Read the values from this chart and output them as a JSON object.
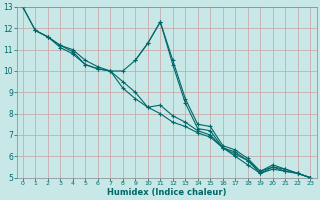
{
  "xlabel": "Humidex (Indice chaleur)",
  "ylabel": "",
  "background_color": "#c8e8e8",
  "grid_color": "#c8a0a0",
  "line_color": "#006868",
  "xlim": [
    -0.5,
    23.5
  ],
  "ylim": [
    5,
    13
  ],
  "xticks": [
    0,
    1,
    2,
    3,
    4,
    5,
    6,
    7,
    8,
    9,
    10,
    11,
    12,
    13,
    14,
    15,
    16,
    17,
    18,
    19,
    20,
    21,
    22,
    23
  ],
  "yticks": [
    5,
    6,
    7,
    8,
    9,
    10,
    11,
    12,
    13
  ],
  "line1_x": [
    0,
    1,
    2,
    3,
    4,
    5,
    6,
    7,
    8,
    9,
    10,
    11,
    12,
    13,
    14,
    15,
    16,
    17,
    18,
    19,
    20,
    21,
    22,
    23
  ],
  "line1_y": [
    13.0,
    11.9,
    11.6,
    11.2,
    11.0,
    10.5,
    10.2,
    10.0,
    10.0,
    10.5,
    11.3,
    12.3,
    10.3,
    8.5,
    7.3,
    7.2,
    6.4,
    6.2,
    5.8,
    5.3,
    5.5,
    5.4,
    5.2,
    5.0
  ],
  "line2_x": [
    0,
    1,
    2,
    3,
    4,
    5,
    6,
    7,
    8,
    9,
    10,
    11,
    12,
    13,
    14,
    15,
    16,
    17,
    18,
    19,
    20,
    21,
    22,
    23
  ],
  "line2_y": [
    13.0,
    11.9,
    11.6,
    11.2,
    10.9,
    10.3,
    10.1,
    10.0,
    9.2,
    8.7,
    8.3,
    8.4,
    7.9,
    7.6,
    7.2,
    7.0,
    6.4,
    6.0,
    5.6,
    5.2,
    5.4,
    5.3,
    5.2,
    5.0
  ],
  "line3_x": [
    1,
    2,
    3,
    4,
    5,
    6,
    7,
    8,
    9,
    10,
    11,
    12,
    13,
    14,
    15,
    16,
    17,
    18,
    19,
    20,
    21,
    22,
    23
  ],
  "line3_y": [
    11.9,
    11.6,
    11.1,
    10.8,
    10.3,
    10.1,
    10.0,
    9.5,
    9.0,
    8.3,
    8.0,
    7.6,
    7.4,
    7.1,
    6.9,
    6.4,
    6.1,
    5.8,
    5.2,
    5.5,
    5.3,
    5.2,
    5.0
  ],
  "line4_x": [
    9,
    10,
    11,
    12,
    13,
    14,
    15,
    16,
    17,
    18,
    19,
    20,
    21,
    22,
    23
  ],
  "line4_y": [
    10.5,
    11.3,
    12.3,
    10.5,
    8.7,
    7.5,
    7.4,
    6.5,
    6.3,
    5.9,
    5.3,
    5.6,
    5.4,
    5.2,
    5.0
  ],
  "xlabel_fontsize": 6,
  "tick_fontsize_x": 4.5,
  "tick_fontsize_y": 5.5
}
